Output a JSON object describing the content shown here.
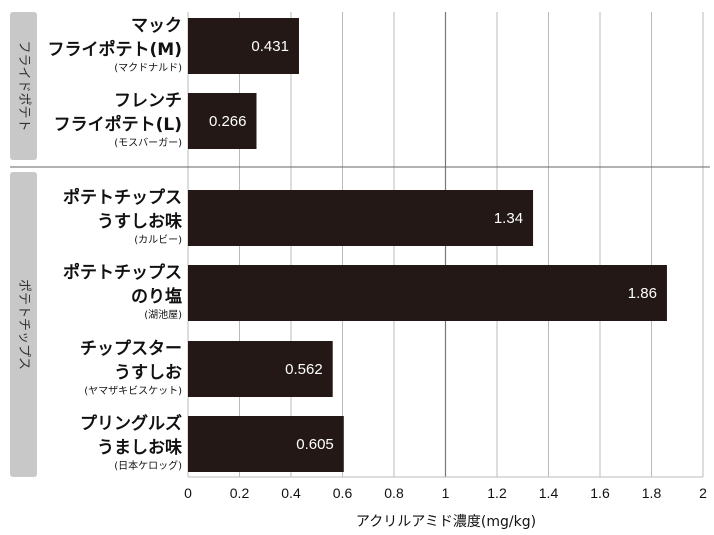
{
  "chart_data": {
    "type": "bar",
    "orientation": "horizontal",
    "xlabel": "アクリルアミド濃度(mg/kg)",
    "xlim": [
      0,
      2
    ],
    "xticks": [
      "0",
      "0.2",
      "0.4",
      "0.6",
      "0.8",
      "1",
      "1.2",
      "1.4",
      "1.6",
      "1.8",
      "2"
    ],
    "grid": true,
    "bar_color": "#231815",
    "groups": [
      {
        "name": "フライドポテト",
        "item_count": 2
      },
      {
        "name": "ポテトチップス",
        "item_count": 4
      }
    ],
    "categories": [
      {
        "lines": [
          "マック",
          "フライポテト(M)"
        ],
        "maker": "(マクドナルド)",
        "value": 0.431,
        "value_label": "0.431"
      },
      {
        "lines": [
          "フレンチ",
          "フライポテト(L)"
        ],
        "maker": "(モスバーガー)",
        "value": 0.266,
        "value_label": "0.266"
      },
      {
        "lines": [
          "ポテトチップス",
          "うすしお味"
        ],
        "maker": "(カルビー)",
        "value": 1.34,
        "value_label": "1.34"
      },
      {
        "lines": [
          "ポテトチップス",
          "のり塩"
        ],
        "maker": "(湖池屋)",
        "value": 1.86,
        "value_label": "1.86"
      },
      {
        "lines": [
          "チップスター",
          "うすしお"
        ],
        "maker": "(ヤマザキビスケット)",
        "value": 0.562,
        "value_label": "0.562"
      },
      {
        "lines": [
          "プリングルズ",
          "うましお味"
        ],
        "maker": "(日本ケロッグ)",
        "value": 0.605,
        "value_label": "0.605"
      }
    ]
  }
}
